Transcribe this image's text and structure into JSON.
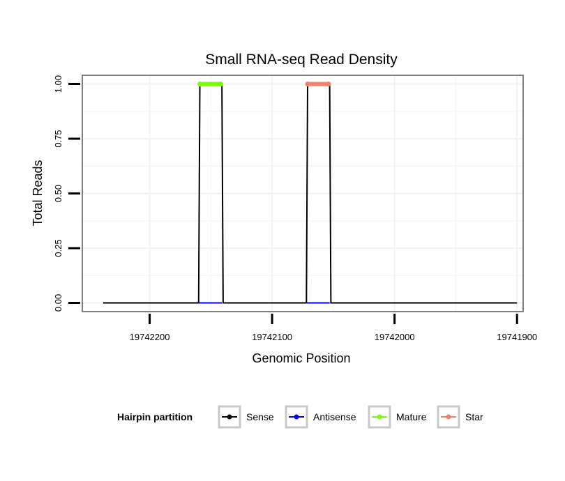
{
  "chart_data": {
    "type": "line",
    "title": "Small RNA-seq Read Density",
    "xlabel": "Genomic Position",
    "ylabel": "Total Reads",
    "x_reversed": true,
    "xlim": [
      19742255,
      19741895
    ],
    "ylim": [
      -0.04,
      1.04
    ],
    "x_ticks": [
      19742200,
      19742100,
      19742000,
      19741900
    ],
    "x_tick_labels": [
      "19742200",
      "19742100",
      "19742000",
      "19741900"
    ],
    "y_ticks": [
      0,
      0.25,
      0.5,
      0.75,
      1
    ],
    "y_tick_labels": [
      "0.00",
      "0.25",
      "0.50",
      "0.75",
      "1.00"
    ],
    "grid": true,
    "series": [
      {
        "name": "Sense",
        "color": "#000000",
        "x": [
          19742238,
          19742160,
          19742159,
          19742141,
          19742140,
          19742072,
          19742071,
          19742053,
          19742052,
          19741900
        ],
        "values": [
          0,
          0,
          1,
          1,
          0,
          0,
          1,
          1,
          0,
          0
        ]
      },
      {
        "name": "Antisense",
        "color": "#0000ff",
        "x": [
          19742160,
          19742141,
          19742072,
          19742053
        ],
        "values": [
          0,
          0,
          0,
          0
        ]
      },
      {
        "name": "Mature",
        "color": "#7cfc00",
        "x": [
          19742159,
          19742142
        ],
        "values": [
          1,
          1
        ]
      },
      {
        "name": "Star",
        "color": "#f08070",
        "x": [
          19742071,
          19742054
        ],
        "values": [
          1,
          1
        ]
      }
    ],
    "legend": {
      "title": "Hairpin partition",
      "position": "bottom",
      "entries": [
        "Sense",
        "Antisense",
        "Mature",
        "Star"
      ]
    }
  }
}
